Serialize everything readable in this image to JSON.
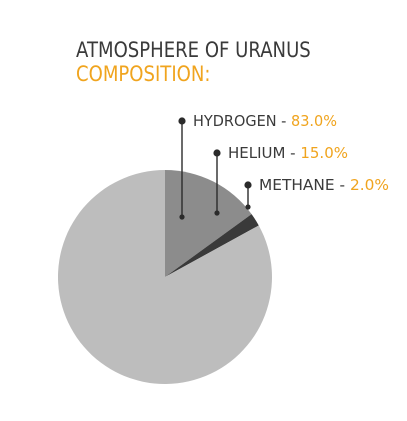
{
  "title": {
    "line1": "ATMOSPHERE OF URANUS",
    "line2": "COMPOSITION:"
  },
  "colors": {
    "title_dark": "#3a3a3a",
    "title_accent": "#f0a41e",
    "label_value": "#f0a41e",
    "label_name": "#3a3a3a",
    "callout_line": "#2b2b2b"
  },
  "chart_data": {
    "type": "pie",
    "title": "ATMOSPHERE OF URANUS COMPOSITION:",
    "slices": [
      {
        "label": "HYDROGEN",
        "value": 83.0,
        "display": "83.0%",
        "color": "#bdbdbd"
      },
      {
        "label": "HELIUM",
        "value": 15.0,
        "display": "15.0%",
        "color": "#8c8c8c"
      },
      {
        "label": "METHANE",
        "value": 2.0,
        "display": "2.0%",
        "color": "#3a3a3a"
      }
    ],
    "legend": "callout labels, upper right"
  }
}
